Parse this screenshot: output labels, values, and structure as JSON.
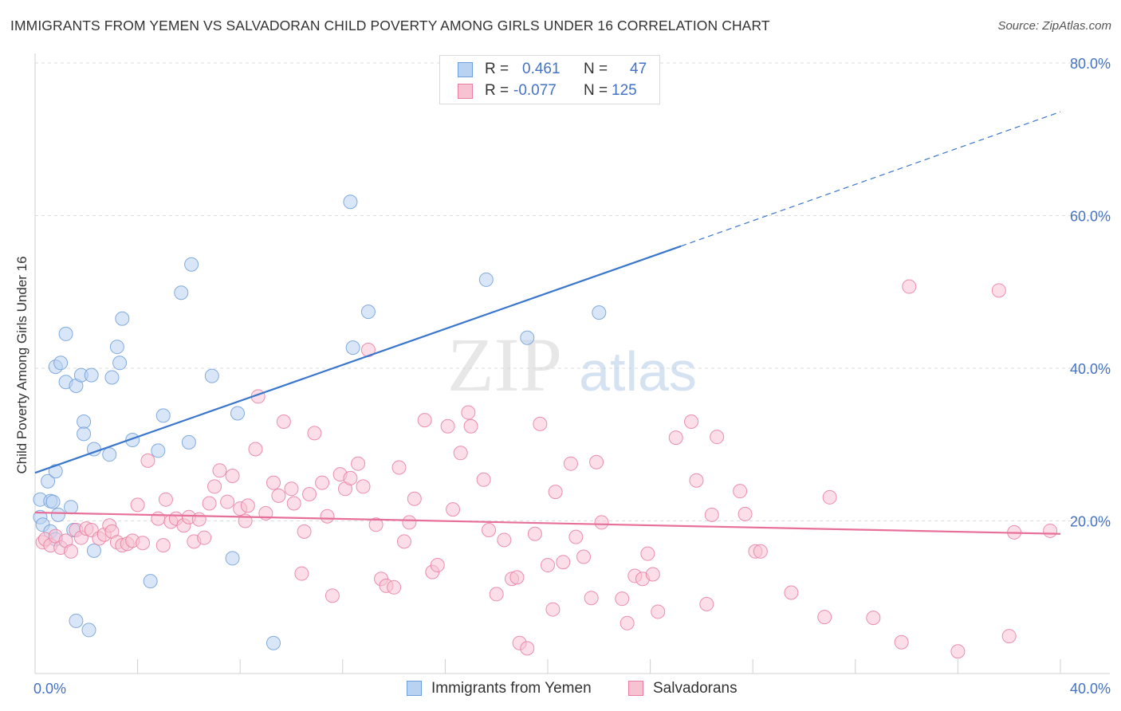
{
  "title": "IMMIGRANTS FROM YEMEN VS SALVADORAN CHILD POVERTY AMONG GIRLS UNDER 16 CORRELATION CHART",
  "source": "Source: ZipAtlas.com",
  "watermark": {
    "zip": "ZIP",
    "atlas": "atlas"
  },
  "legend_stats": {
    "r_label": "R =",
    "n_label": "N =",
    "rows": [
      {
        "r": "0.461",
        "n": "47",
        "color": "#6f9fd8"
      },
      {
        "r": "-0.077",
        "n": "125",
        "color": "#e87ea1"
      }
    ]
  },
  "chart_data": {
    "type": "scatter",
    "ylabel": "Child Poverty Among Girls Under 16",
    "xlim": [
      0,
      40
    ],
    "ylim": [
      0,
      80
    ],
    "x_tick_labels": [
      {
        "value": 0,
        "label": "0.0%"
      },
      {
        "value": 40,
        "label": "40.0%"
      }
    ],
    "y_tick_labels": [
      {
        "value": 20,
        "label": "20.0%"
      },
      {
        "value": 40,
        "label": "40.0%"
      },
      {
        "value": 60,
        "label": "60.0%"
      },
      {
        "value": 80,
        "label": "80.0%"
      }
    ],
    "grid": true,
    "series": [
      {
        "name": "Immigrants from Yemen",
        "color": "#6f9fd8",
        "fill": "#b9d2f2",
        "trend": {
          "x0": 0,
          "y0": 26.3,
          "x1": 25.2,
          "y1": 56.0,
          "x_end": 40,
          "y_end": 73.6
        },
        "points": [
          [
            0.2,
            20.5
          ],
          [
            0.3,
            19.5
          ],
          [
            0.2,
            22.8
          ],
          [
            0.5,
            25.2
          ],
          [
            0.6,
            22.6
          ],
          [
            0.8,
            26.5
          ],
          [
            0.6,
            18.6
          ],
          [
            0.9,
            20.8
          ],
          [
            1.4,
            21.8
          ],
          [
            0.8,
            17.6
          ],
          [
            1.5,
            18.8
          ],
          [
            1.2,
            44.5
          ],
          [
            1.2,
            38.2
          ],
          [
            1.6,
            37.7
          ],
          [
            0.8,
            40.2
          ],
          [
            1.0,
            40.7
          ],
          [
            1.8,
            39.1
          ],
          [
            2.2,
            39.1
          ],
          [
            1.9,
            33.0
          ],
          [
            1.9,
            31.4
          ],
          [
            2.3,
            29.4
          ],
          [
            2.9,
            28.7
          ],
          [
            3.2,
            42.8
          ],
          [
            3.3,
            40.7
          ],
          [
            3.4,
            46.5
          ],
          [
            3.0,
            38.8
          ],
          [
            3.8,
            30.6
          ],
          [
            4.8,
            29.2
          ],
          [
            5.0,
            33.8
          ],
          [
            5.7,
            49.9
          ],
          [
            6.1,
            53.6
          ],
          [
            6.0,
            30.3
          ],
          [
            6.9,
            39.0
          ],
          [
            7.7,
            15.1
          ],
          [
            7.9,
            34.1
          ],
          [
            4.5,
            12.1
          ],
          [
            1.6,
            6.9
          ],
          [
            2.1,
            5.7
          ],
          [
            2.3,
            16.1
          ],
          [
            9.3,
            4.0
          ],
          [
            12.3,
            61.8
          ],
          [
            12.4,
            42.7
          ],
          [
            13.0,
            47.4
          ],
          [
            17.6,
            51.6
          ],
          [
            19.2,
            44.0
          ],
          [
            22.0,
            47.3
          ],
          [
            0.7,
            22.5
          ]
        ]
      },
      {
        "name": "Salvadorans",
        "color": "#e87ea1",
        "fill": "#f7c3d3",
        "trend": {
          "x0": 0,
          "y0": 21.1,
          "x1": 40,
          "y1": 18.3
        },
        "points": [
          [
            0.3,
            17.2
          ],
          [
            0.4,
            17.6
          ],
          [
            0.6,
            16.8
          ],
          [
            0.8,
            18.0
          ],
          [
            1.0,
            16.5
          ],
          [
            1.2,
            17.4
          ],
          [
            1.4,
            16.0
          ],
          [
            1.6,
            18.8
          ],
          [
            1.8,
            17.8
          ],
          [
            2.0,
            19.0
          ],
          [
            2.2,
            18.8
          ],
          [
            2.5,
            17.7
          ],
          [
            2.7,
            18.2
          ],
          [
            2.9,
            19.4
          ],
          [
            3.0,
            18.6
          ],
          [
            3.2,
            17.2
          ],
          [
            3.4,
            16.8
          ],
          [
            3.6,
            17.0
          ],
          [
            3.8,
            17.4
          ],
          [
            4.0,
            22.1
          ],
          [
            4.2,
            17.1
          ],
          [
            4.4,
            27.9
          ],
          [
            4.8,
            20.3
          ],
          [
            5.0,
            16.8
          ],
          [
            5.1,
            22.8
          ],
          [
            5.3,
            19.9
          ],
          [
            5.5,
            20.3
          ],
          [
            5.8,
            19.4
          ],
          [
            6.0,
            20.5
          ],
          [
            6.2,
            17.3
          ],
          [
            6.4,
            20.2
          ],
          [
            6.6,
            17.8
          ],
          [
            6.8,
            22.3
          ],
          [
            7.0,
            24.5
          ],
          [
            7.2,
            26.6
          ],
          [
            7.5,
            22.5
          ],
          [
            7.7,
            25.9
          ],
          [
            8.0,
            21.6
          ],
          [
            8.2,
            20.0
          ],
          [
            8.3,
            22.0
          ],
          [
            8.6,
            29.4
          ],
          [
            8.7,
            36.3
          ],
          [
            9.0,
            21.0
          ],
          [
            9.3,
            25.0
          ],
          [
            9.5,
            23.3
          ],
          [
            9.7,
            33.0
          ],
          [
            10.0,
            24.2
          ],
          [
            10.1,
            22.3
          ],
          [
            10.4,
            13.1
          ],
          [
            10.5,
            18.6
          ],
          [
            10.7,
            23.5
          ],
          [
            10.9,
            31.5
          ],
          [
            11.2,
            25.0
          ],
          [
            11.4,
            20.6
          ],
          [
            11.6,
            10.2
          ],
          [
            11.9,
            26.1
          ],
          [
            12.1,
            24.2
          ],
          [
            12.3,
            25.6
          ],
          [
            12.6,
            27.5
          ],
          [
            12.8,
            24.5
          ],
          [
            13.0,
            42.4
          ],
          [
            13.3,
            19.5
          ],
          [
            13.5,
            12.4
          ],
          [
            13.7,
            11.5
          ],
          [
            14.0,
            11.3
          ],
          [
            14.2,
            27.0
          ],
          [
            14.4,
            17.3
          ],
          [
            14.6,
            19.8
          ],
          [
            14.8,
            22.9
          ],
          [
            15.2,
            33.2
          ],
          [
            15.5,
            13.3
          ],
          [
            15.7,
            14.2
          ],
          [
            16.1,
            32.4
          ],
          [
            16.3,
            21.5
          ],
          [
            16.6,
            28.9
          ],
          [
            16.9,
            34.2
          ],
          [
            17.0,
            32.4
          ],
          [
            17.5,
            25.4
          ],
          [
            17.7,
            18.8
          ],
          [
            18.0,
            10.4
          ],
          [
            18.3,
            17.5
          ],
          [
            18.6,
            12.4
          ],
          [
            18.8,
            12.6
          ],
          [
            18.9,
            4.0
          ],
          [
            19.2,
            3.3
          ],
          [
            19.5,
            18.3
          ],
          [
            19.7,
            32.7
          ],
          [
            20.0,
            14.2
          ],
          [
            20.2,
            8.4
          ],
          [
            20.3,
            23.8
          ],
          [
            20.6,
            14.6
          ],
          [
            20.9,
            27.5
          ],
          [
            21.1,
            17.9
          ],
          [
            21.4,
            15.3
          ],
          [
            21.7,
            9.9
          ],
          [
            21.9,
            27.7
          ],
          [
            22.1,
            19.8
          ],
          [
            22.9,
            9.8
          ],
          [
            23.1,
            6.6
          ],
          [
            23.4,
            12.8
          ],
          [
            23.7,
            12.4
          ],
          [
            23.9,
            15.7
          ],
          [
            24.1,
            13.0
          ],
          [
            24.3,
            8.1
          ],
          [
            25.0,
            30.9
          ],
          [
            25.6,
            33.0
          ],
          [
            25.8,
            25.3
          ],
          [
            26.2,
            9.1
          ],
          [
            26.4,
            20.8
          ],
          [
            26.6,
            31.0
          ],
          [
            27.5,
            23.9
          ],
          [
            27.7,
            20.9
          ],
          [
            28.1,
            16.0
          ],
          [
            28.3,
            16.0
          ],
          [
            29.5,
            10.6
          ],
          [
            30.8,
            7.4
          ],
          [
            31.0,
            23.1
          ],
          [
            32.7,
            7.3
          ],
          [
            33.8,
            4.1
          ],
          [
            34.1,
            50.7
          ],
          [
            36.0,
            2.9
          ],
          [
            37.6,
            50.2
          ],
          [
            38.0,
            4.9
          ],
          [
            39.6,
            18.7
          ],
          [
            38.2,
            18.5
          ]
        ]
      }
    ]
  }
}
